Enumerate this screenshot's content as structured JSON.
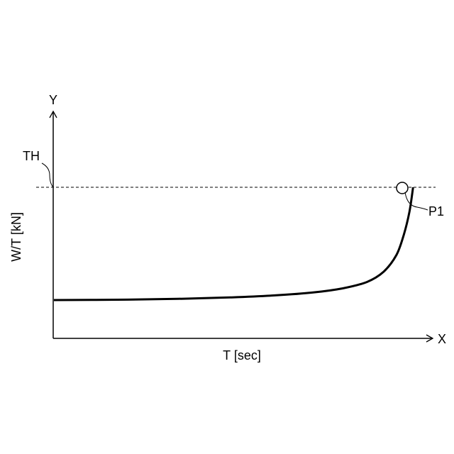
{
  "chart_data": {
    "type": "line",
    "title": "",
    "x_axis_letter": "X",
    "y_axis_letter": "Y",
    "xlabel": "T [sec]",
    "ylabel": "W/T [kN]",
    "threshold": {
      "label": "TH",
      "style": "dashed"
    },
    "point_label": "P1",
    "grid": false,
    "legend": "none",
    "series": [
      {
        "values": [
          0.0,
          0.004,
          0.012,
          0.024,
          0.042,
          0.067,
          0.104,
          0.16,
          0.25,
          0.4,
          0.58,
          0.78,
          1.0
        ]
      }
    ],
    "x_fraction": [
      0.0,
      0.2,
      0.35,
      0.48,
      0.6,
      0.7,
      0.78,
      0.845,
      0.89,
      0.925,
      0.945,
      0.96,
      0.97
    ]
  }
}
